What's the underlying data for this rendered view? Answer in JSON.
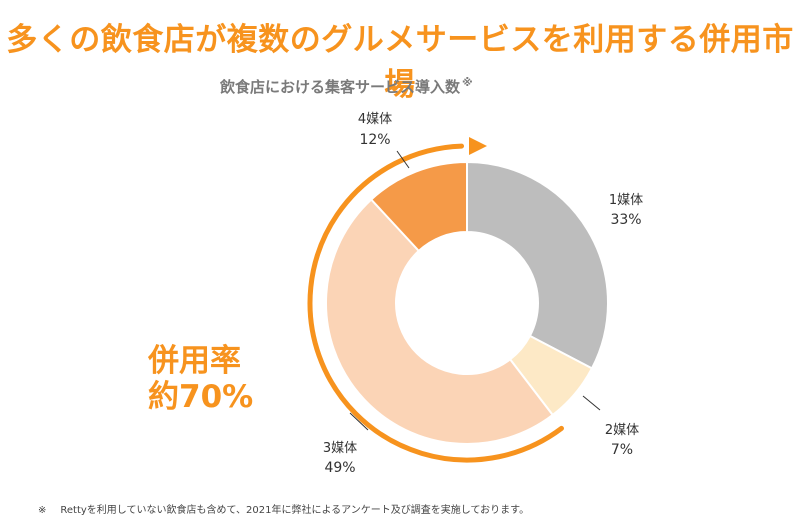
{
  "headline": "多くの飲食店が複数のグルメサービスを利用する併用市場",
  "chart_data": {
    "type": "pie",
    "title": "飲食店における集客サービス導入数",
    "title_note_mark": "※",
    "start": "top",
    "direction": "clockwise",
    "slices": [
      {
        "label": "1媒体",
        "value": 33,
        "value_label": "33%",
        "color": "#BDBDBD"
      },
      {
        "label": "2媒体",
        "value": 7,
        "value_label": "7%",
        "color": "#FDE9C6"
      },
      {
        "label": "3媒体",
        "value": 49,
        "value_label": "49%",
        "color": "#FBD4B6"
      },
      {
        "label": "4媒体",
        "value": 12,
        "value_label": "12%",
        "color": "#F59A48"
      }
    ]
  },
  "callout": {
    "line1": "併用率",
    "line2": "約70%",
    "color": "#F7931E"
  },
  "footnote": {
    "mark": "※",
    "text": "Rettyを利用していない飲食店も含めて、2021年に弊社によるアンケート及び調査を実施しております。"
  },
  "colors": {
    "accent": "#F7931E"
  }
}
